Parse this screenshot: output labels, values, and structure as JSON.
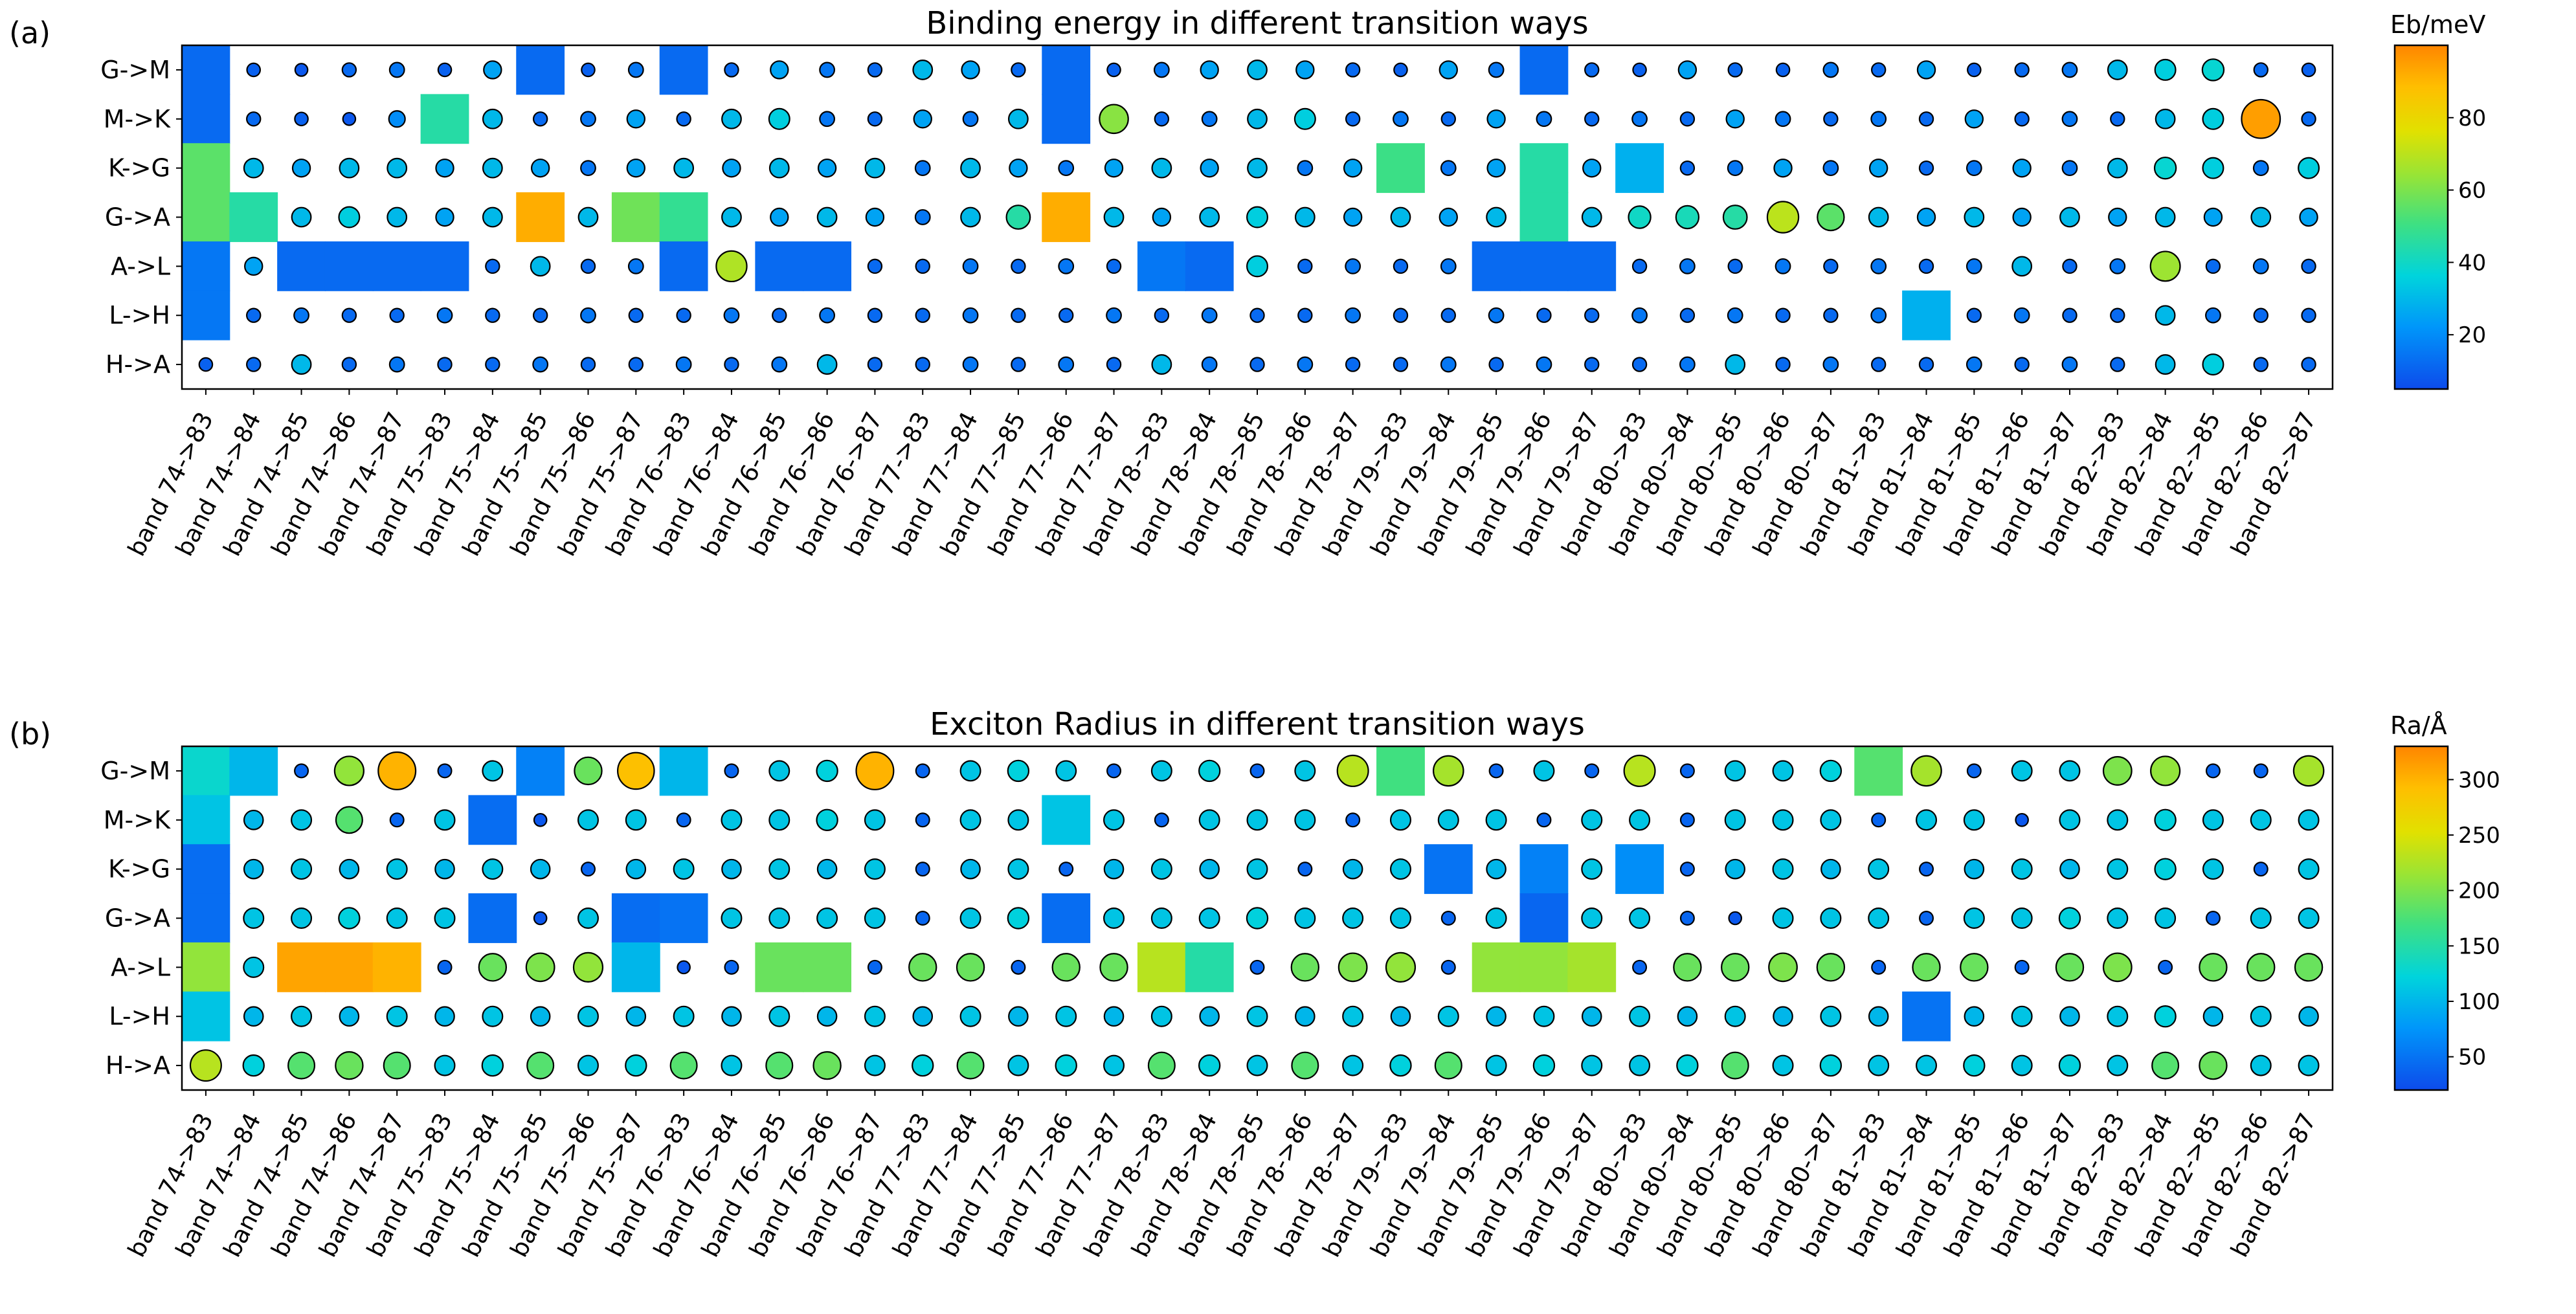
{
  "figure": {
    "background": "#ffffff"
  },
  "colormap": [
    {
      "t": 0.0,
      "color": "#0d4beb"
    },
    {
      "t": 0.18,
      "color": "#0096fa"
    },
    {
      "t": 0.33,
      "color": "#00d4dc"
    },
    {
      "t": 0.48,
      "color": "#3ee082"
    },
    {
      "t": 0.62,
      "color": "#96e437"
    },
    {
      "t": 0.75,
      "color": "#e1e100"
    },
    {
      "t": 0.88,
      "color": "#ffbe00"
    },
    {
      "t": 1.0,
      "color": "#ff8500"
    }
  ],
  "chart_data": [
    {
      "id": "a",
      "panel_label": "(a)",
      "type": "scatter",
      "title": "Binding energy in different transition ways",
      "colorbar_label": "Eb/meV",
      "colorbar_ticks": [
        20,
        40,
        60,
        80
      ],
      "color_range": [
        5,
        100
      ],
      "size_encoding": "marker size increases with value; full-cell squares mark band-like transitions",
      "rows": [
        "G->M",
        "M->K",
        "K->G",
        "G->A",
        "A->L",
        "L->H",
        "H->A"
      ],
      "columns": [
        "band 74->83",
        "band 74->84",
        "band 74->85",
        "band 74->86",
        "band 74->87",
        "band 75->83",
        "band 75->84",
        "band 75->85",
        "band 75->86",
        "band 75->87",
        "band 76->83",
        "band 76->84",
        "band 76->85",
        "band 76->86",
        "band 76->87",
        "band 77->83",
        "band 77->84",
        "band 77->85",
        "band 77->86",
        "band 77->87",
        "band 78->83",
        "band 78->84",
        "band 78->85",
        "band 78->86",
        "band 78->87",
        "band 79->83",
        "band 79->84",
        "band 79->85",
        "band 79->86",
        "band 79->87",
        "band 80->83",
        "band 80->84",
        "band 80->85",
        "band 80->86",
        "band 80->87",
        "band 81->83",
        "band 81->84",
        "band 81->85",
        "band 81->86",
        "band 81->87",
        "band 82->83",
        "band 82->84",
        "band 82->85",
        "band 82->86",
        "band 82->87"
      ],
      "square_cells": [
        [
          0,
          7,
          10,
          18,
          28
        ],
        [
          0,
          5,
          18
        ],
        [
          0,
          25,
          28,
          30
        ],
        [
          0,
          1,
          7,
          9,
          10,
          18,
          28
        ],
        [
          0,
          2,
          3,
          4,
          5,
          10,
          12,
          13,
          20,
          21,
          27,
          28,
          29
        ],
        [
          0,
          36
        ],
        []
      ],
      "values": [
        [
          12,
          10,
          8,
          12,
          15,
          10,
          25,
          12,
          10,
          15,
          12,
          12,
          25,
          15,
          12,
          30,
          25,
          12,
          12,
          10,
          15,
          25,
          30,
          25,
          12,
          10,
          25,
          15,
          12,
          12,
          10,
          25,
          12,
          10,
          15,
          12,
          25,
          10,
          12,
          15,
          30,
          35,
          38,
          12,
          10
        ],
        [
          12,
          12,
          10,
          8,
          20,
          45,
          30,
          12,
          15,
          25,
          12,
          30,
          35,
          15,
          12,
          25,
          15,
          30,
          12,
          62,
          12,
          15,
          30,
          35,
          12,
          15,
          12,
          25,
          15,
          12,
          15,
          12,
          25,
          15,
          12,
          15,
          12,
          25,
          12,
          15,
          12,
          30,
          35,
          95,
          12
        ],
        [
          55,
          30,
          25,
          30,
          30,
          25,
          30,
          25,
          15,
          25,
          30,
          25,
          30,
          25,
          30,
          15,
          30,
          25,
          15,
          25,
          30,
          25,
          30,
          15,
          25,
          50,
          15,
          25,
          45,
          25,
          28,
          12,
          15,
          25,
          15,
          25,
          12,
          15,
          25,
          15,
          30,
          38,
          35,
          15,
          35
        ],
        [
          55,
          45,
          30,
          35,
          30,
          25,
          30,
          92,
          30,
          58,
          48,
          30,
          25,
          30,
          25,
          15,
          30,
          45,
          92,
          30,
          25,
          30,
          35,
          30,
          25,
          30,
          25,
          30,
          45,
          30,
          40,
          42,
          45,
          70,
          55,
          30,
          25,
          30,
          25,
          30,
          25,
          30,
          25,
          30,
          25
        ],
        [
          15,
          25,
          12,
          12,
          12,
          12,
          12,
          30,
          12,
          15,
          12,
          68,
          12,
          12,
          12,
          12,
          15,
          12,
          15,
          12,
          15,
          12,
          35,
          12,
          15,
          12,
          15,
          12,
          12,
          12,
          12,
          15,
          12,
          15,
          12,
          15,
          12,
          15,
          30,
          12,
          15,
          65,
          12,
          15,
          12
        ],
        [
          15,
          12,
          15,
          12,
          12,
          15,
          12,
          12,
          15,
          12,
          12,
          15,
          12,
          15,
          12,
          12,
          15,
          12,
          12,
          15,
          12,
          15,
          12,
          12,
          15,
          12,
          12,
          15,
          12,
          12,
          15,
          12,
          15,
          12,
          12,
          15,
          28,
          12,
          15,
          12,
          12,
          30,
          15,
          12,
          12
        ],
        [
          10,
          12,
          30,
          12,
          15,
          12,
          12,
          15,
          12,
          12,
          15,
          12,
          15,
          30,
          12,
          12,
          15,
          12,
          15,
          12,
          30,
          15,
          12,
          15,
          12,
          12,
          15,
          12,
          15,
          12,
          12,
          15,
          30,
          12,
          15,
          12,
          12,
          15,
          12,
          15,
          12,
          30,
          35,
          12,
          12
        ]
      ]
    },
    {
      "id": "b",
      "panel_label": "(b)",
      "type": "scatter",
      "title": "Exciton Radius in different transition ways",
      "colorbar_label": "Ra/Å",
      "colorbar_ticks": [
        50,
        100,
        150,
        200,
        250,
        300
      ],
      "color_range": [
        20,
        330
      ],
      "size_encoding": "marker size increases with value; full-cell squares mark band-like transitions",
      "rows": [
        "G->M",
        "M->K",
        "K->G",
        "G->A",
        "A->L",
        "L->H",
        "H->A"
      ],
      "columns": [
        "band 74->83",
        "band 74->84",
        "band 74->85",
        "band 74->86",
        "band 74->87",
        "band 75->83",
        "band 75->84",
        "band 75->85",
        "band 75->86",
        "band 75->87",
        "band 76->83",
        "band 76->84",
        "band 76->85",
        "band 76->86",
        "band 76->87",
        "band 77->83",
        "band 77->84",
        "band 77->85",
        "band 77->86",
        "band 77->87",
        "band 78->83",
        "band 78->84",
        "band 78->85",
        "band 78->86",
        "band 78->87",
        "band 79->83",
        "band 79->84",
        "band 79->85",
        "band 79->86",
        "band 79->87",
        "band 80->83",
        "band 80->84",
        "band 80->85",
        "band 80->86",
        "band 80->87",
        "band 81->83",
        "band 81->84",
        "band 81->85",
        "band 81->86",
        "band 81->87",
        "band 82->83",
        "band 82->84",
        "band 82->85",
        "band 82->86",
        "band 82->87"
      ],
      "square_cells": [
        [
          0,
          1,
          7,
          10,
          25,
          35
        ],
        [
          0,
          6,
          18
        ],
        [
          0,
          26,
          28,
          30
        ],
        [
          0,
          6,
          9,
          10,
          18,
          28
        ],
        [
          0,
          2,
          3,
          4,
          9,
          12,
          13,
          20,
          21,
          27,
          28,
          29
        ],
        [
          0,
          36
        ],
        []
      ],
      "values": [
        [
          130,
          100,
          40,
          210,
          300,
          40,
          110,
          60,
          190,
          290,
          100,
          40,
          110,
          120,
          300,
          40,
          110,
          120,
          110,
          40,
          110,
          120,
          40,
          110,
          230,
          170,
          220,
          40,
          110,
          40,
          230,
          40,
          110,
          110,
          120,
          180,
          220,
          40,
          110,
          110,
          200,
          210,
          40,
          40,
          220
        ],
        [
          110,
          100,
          110,
          180,
          40,
          110,
          45,
          30,
          110,
          110,
          40,
          110,
          110,
          120,
          110,
          40,
          110,
          110,
          110,
          110,
          40,
          110,
          110,
          110,
          40,
          110,
          110,
          110,
          40,
          110,
          110,
          40,
          110,
          110,
          110,
          40,
          110,
          110,
          30,
          110,
          110,
          120,
          110,
          110,
          110
        ],
        [
          45,
          100,
          110,
          100,
          110,
          100,
          110,
          100,
          40,
          100,
          110,
          100,
          110,
          100,
          110,
          40,
          100,
          110,
          40,
          100,
          110,
          100,
          110,
          40,
          100,
          110,
          50,
          100,
          60,
          110,
          70,
          40,
          100,
          110,
          100,
          110,
          40,
          100,
          110,
          100,
          110,
          120,
          110,
          40,
          110
        ],
        [
          45,
          110,
          110,
          120,
          110,
          110,
          45,
          30,
          110,
          45,
          50,
          110,
          110,
          110,
          110,
          40,
          110,
          120,
          45,
          110,
          110,
          110,
          120,
          110,
          110,
          110,
          40,
          110,
          40,
          110,
          110,
          40,
          30,
          110,
          110,
          110,
          40,
          110,
          110,
          120,
          110,
          110,
          40,
          110,
          110
        ],
        [
          210,
          110,
          310,
          310,
          300,
          40,
          190,
          200,
          210,
          100,
          30,
          40,
          190,
          190,
          40,
          190,
          190,
          40,
          190,
          190,
          230,
          150,
          40,
          190,
          200,
          210,
          40,
          210,
          210,
          220,
          40,
          190,
          190,
          200,
          190,
          40,
          190,
          190,
          40,
          190,
          200,
          40,
          190,
          190,
          190
        ],
        [
          110,
          100,
          110,
          100,
          110,
          100,
          110,
          100,
          110,
          100,
          110,
          100,
          110,
          100,
          110,
          100,
          110,
          100,
          110,
          100,
          110,
          100,
          110,
          100,
          110,
          100,
          110,
          100,
          110,
          100,
          110,
          100,
          110,
          100,
          110,
          100,
          50,
          100,
          110,
          100,
          110,
          120,
          100,
          110,
          100
        ],
        [
          230,
          120,
          180,
          190,
          180,
          110,
          120,
          180,
          110,
          120,
          180,
          110,
          180,
          190,
          110,
          120,
          180,
          110,
          120,
          110,
          180,
          120,
          110,
          180,
          110,
          120,
          180,
          110,
          120,
          110,
          110,
          120,
          180,
          110,
          120,
          110,
          110,
          120,
          110,
          120,
          110,
          180,
          190,
          110,
          110
        ]
      ]
    }
  ]
}
